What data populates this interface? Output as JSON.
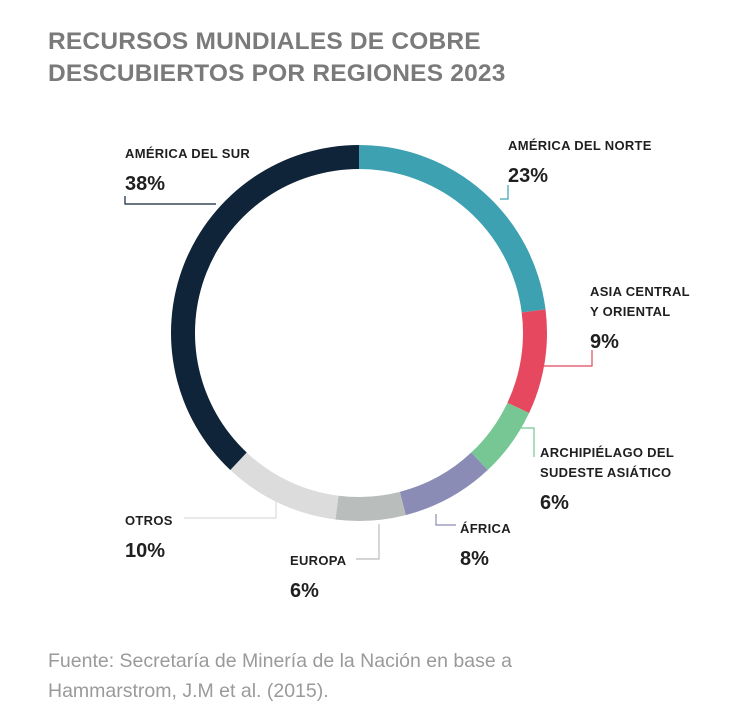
{
  "title_lines": [
    "RECURSOS MUNDIALES DE COBRE",
    "DESCUBIERTOS POR REGIONES 2023"
  ],
  "source_lines": [
    "Fuente: Secretaría de Minería de la Nación en base a",
    "Hammarstrom, J.M et al. (2015)."
  ],
  "chart_data": {
    "type": "pie",
    "variant": "donut",
    "title": "RECURSOS MUNDIALES DE COBRE DESCUBIERTOS POR REGIONES 2023",
    "slices": [
      {
        "label_lines": [
          "AMÉRICA DEL NORTE"
        ],
        "value": 23,
        "display": "23%",
        "color": "#3ea1b1"
      },
      {
        "label_lines": [
          "ASIA CENTRAL",
          "Y ORIENTAL"
        ],
        "value": 9,
        "display": "9%",
        "color": "#e5485f"
      },
      {
        "label_lines": [
          "ARCHIPIÉLAGO DEL",
          "SUDESTE ASIÁTICO"
        ],
        "value": 6,
        "display": "6%",
        "color": "#76c793"
      },
      {
        "label_lines": [
          "ÁFRICA"
        ],
        "value": 8,
        "display": "8%",
        "color": "#8b8cb6"
      },
      {
        "label_lines": [
          "EUROPA"
        ],
        "value": 6,
        "display": "6%",
        "color": "#b9bdbc"
      },
      {
        "label_lines": [
          "OTROS"
        ],
        "value": 10,
        "display": "10%",
        "color": "#dcdcdc"
      },
      {
        "label_lines": [
          "AMÉRICA DEL SUR"
        ],
        "value": 38,
        "display": "38%",
        "color": "#0f2438"
      }
    ]
  }
}
